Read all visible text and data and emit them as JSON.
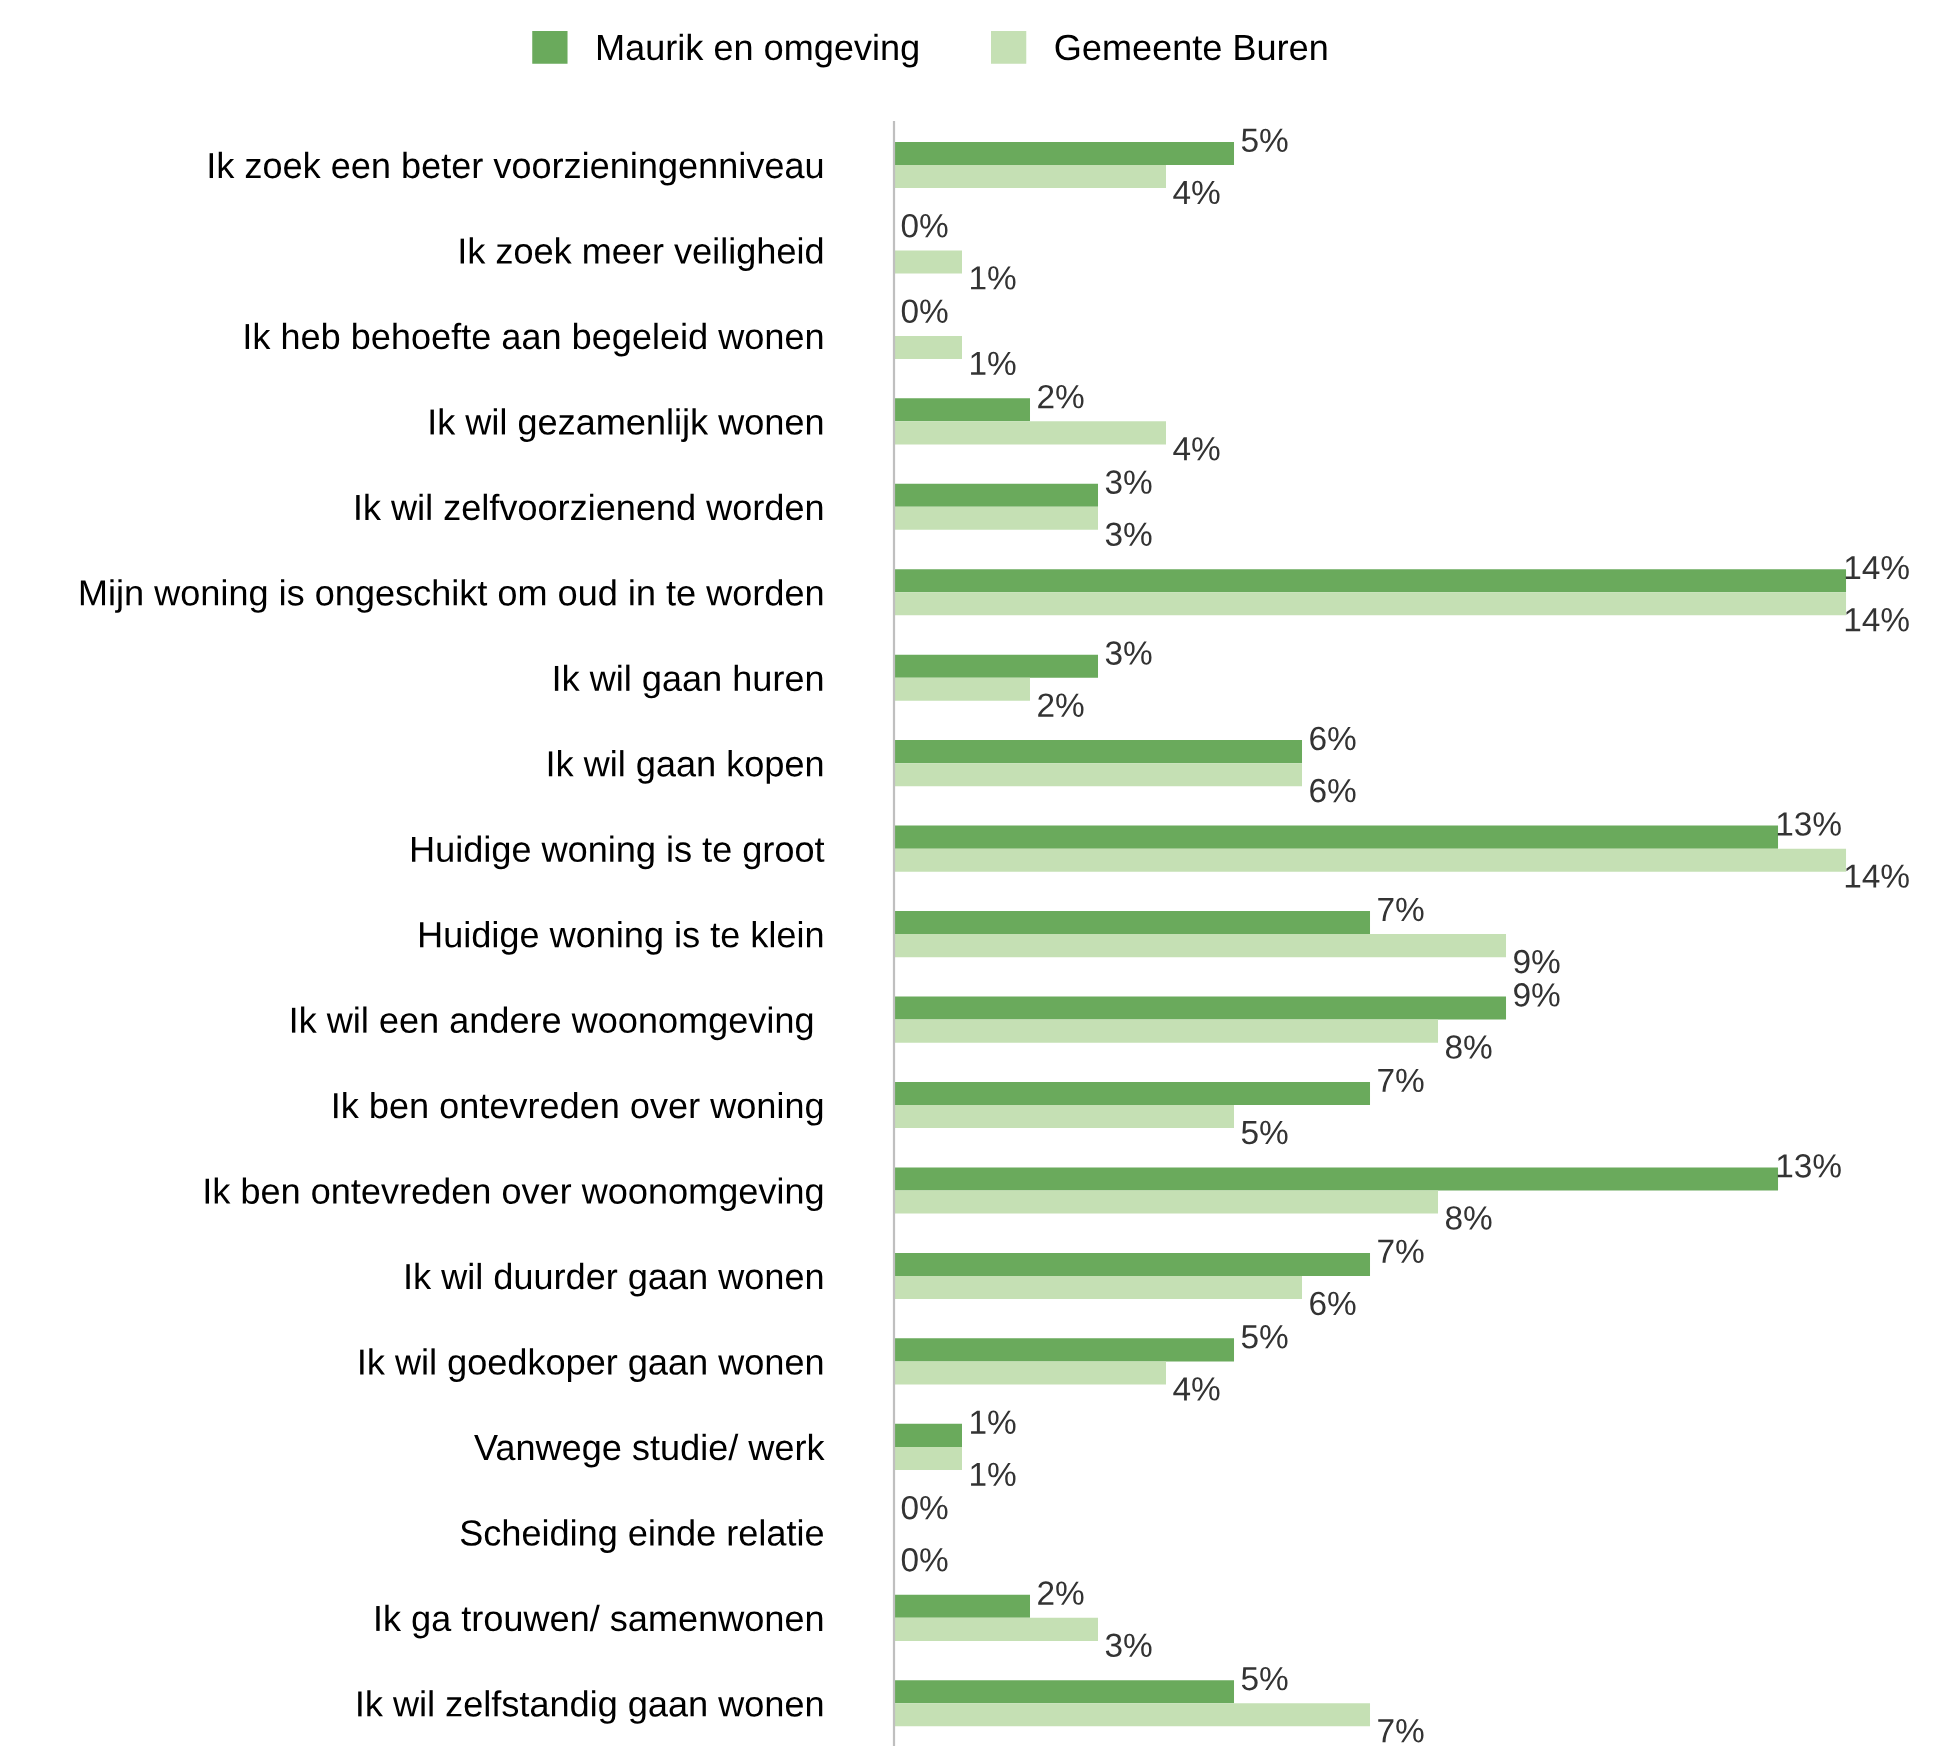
{
  "chart_data": {
    "type": "bar",
    "orientation": "horizontal",
    "legend": "top",
    "grid": false,
    "categories": [
      "Ik zoek een beter voorzieningenniveau",
      "Ik zoek meer veiligheid",
      "Ik heb behoefte aan begeleid wonen",
      "Ik wil gezamenlijk wonen",
      "Ik wil zelfvoorzienend worden",
      "Mijn woning is ongeschikt om oud in te worden",
      "Ik wil gaan huren",
      "Ik wil gaan kopen",
      "Huidige woning is te groot",
      "Huidige woning is te klein",
      "Ik wil een andere woonomgeving ",
      "Ik ben ontevreden over woning",
      "Ik ben ontevreden over woonomgeving",
      "Ik wil duurder gaan wonen",
      "Ik wil goedkoper gaan wonen",
      "Vanwege studie/ werk",
      "Scheiding einde relatie",
      "Ik ga trouwen/ samenwonen",
      "Ik wil zelfstandig gaan wonen"
    ],
    "series": [
      {
        "name": "Maurik en omgeving",
        "color": "#6aaa5c",
        "values": [
          5,
          0,
          0,
          2,
          3,
          14,
          3,
          6,
          13,
          7,
          9,
          7,
          13,
          7,
          5,
          1,
          0,
          2,
          5
        ],
        "value_labels": [
          "5%",
          "0%",
          "0%",
          "2%",
          "3%",
          "14%",
          "3%",
          "6%",
          "13%",
          "7%",
          "9%",
          "7%",
          "13%",
          "7%",
          "5%",
          "1%",
          "0%",
          "2%",
          "5%"
        ]
      },
      {
        "name": "Gemeente Buren",
        "color": "#c5e0b4",
        "values": [
          4,
          1,
          1,
          4,
          3,
          14,
          2,
          6,
          14,
          9,
          8,
          5,
          8,
          6,
          4,
          1,
          0,
          3,
          7
        ],
        "value_labels": [
          "4%",
          "1%",
          "1%",
          "4%",
          "3%",
          "14%",
          "2%",
          "6%",
          "14%",
          "9%",
          "8%",
          "5%",
          "8%",
          "6%",
          "4%",
          "1%",
          "0%",
          "3%",
          "7%"
        ]
      }
    ]
  }
}
